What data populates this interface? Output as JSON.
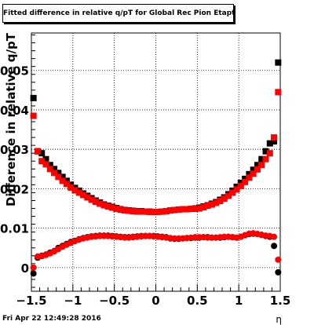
{
  "chart_data": {
    "type": "scatter",
    "title": "Fitted difference in relative q/pT for Global Rec Pion Etapt",
    "xlabel": "η",
    "ylabel": "Difference in relative q/pT",
    "xlim": [
      -1.5,
      1.5
    ],
    "ylim": [
      -0.006,
      0.0595
    ],
    "x_ticks": [
      -1.5,
      -1,
      -0.5,
      0,
      0.5,
      1,
      1.5
    ],
    "x_tick_labels": [
      "−1.5",
      "−1",
      "−0.5",
      "0",
      "0.5",
      "1",
      "1.5"
    ],
    "y_ticks": [
      0,
      0.01,
      0.02,
      0.03,
      0.04,
      0.05
    ],
    "y_tick_labels": [
      "0",
      "0.01",
      "0.02",
      "0.03",
      "0.04",
      "0.05"
    ],
    "grid": true,
    "series": [
      {
        "marker": "square",
        "color": "#000000",
        "x": [
          -1.475,
          -1.425,
          -1.375,
          -1.325,
          -1.275,
          -1.225,
          -1.175,
          -1.125,
          -1.075,
          -1.025,
          -0.975,
          -0.925,
          -0.875,
          -0.825,
          -0.775,
          -0.725,
          -0.675,
          -0.625,
          -0.575,
          -0.525,
          -0.475,
          -0.425,
          -0.375,
          -0.325,
          -0.275,
          -0.225,
          -0.175,
          -0.125,
          -0.075,
          -0.025,
          0.025,
          0.075,
          0.125,
          0.175,
          0.225,
          0.275,
          0.325,
          0.375,
          0.425,
          0.475,
          0.525,
          0.575,
          0.625,
          0.675,
          0.725,
          0.775,
          0.825,
          0.875,
          0.925,
          0.975,
          1.025,
          1.075,
          1.125,
          1.175,
          1.225,
          1.275,
          1.325,
          1.375,
          1.425,
          1.475
        ],
        "values": [
          0.043,
          0.0295,
          0.029,
          0.0275,
          0.026,
          0.025,
          0.024,
          0.023,
          0.022,
          0.021,
          0.0202,
          0.0195,
          0.0188,
          0.0182,
          0.0176,
          0.017,
          0.0165,
          0.016,
          0.0157,
          0.0154,
          0.0151,
          0.0148,
          0.0146,
          0.0145,
          0.0144,
          0.0143,
          0.0143,
          0.0142,
          0.0142,
          0.0141,
          0.0141,
          0.0142,
          0.0143,
          0.0145,
          0.0146,
          0.0147,
          0.0148,
          0.0148,
          0.0149,
          0.015,
          0.0152,
          0.0155,
          0.0158,
          0.0162,
          0.0166,
          0.0172,
          0.0178,
          0.0186,
          0.0195,
          0.0205,
          0.0215,
          0.0225,
          0.0237,
          0.0248,
          0.026,
          0.0275,
          0.0295,
          0.0315,
          0.032,
          0.052
        ]
      },
      {
        "marker": "square",
        "color": "#ff0000",
        "x": [
          -1.475,
          -1.425,
          -1.375,
          -1.325,
          -1.275,
          -1.225,
          -1.175,
          -1.125,
          -1.075,
          -1.025,
          -0.975,
          -0.925,
          -0.875,
          -0.825,
          -0.775,
          -0.725,
          -0.675,
          -0.625,
          -0.575,
          -0.525,
          -0.475,
          -0.425,
          -0.375,
          -0.325,
          -0.275,
          -0.225,
          -0.175,
          -0.125,
          -0.075,
          -0.025,
          0.025,
          0.075,
          0.125,
          0.175,
          0.225,
          0.275,
          0.325,
          0.375,
          0.425,
          0.475,
          0.525,
          0.575,
          0.625,
          0.675,
          0.725,
          0.775,
          0.825,
          0.875,
          0.925,
          0.975,
          1.025,
          1.075,
          1.125,
          1.175,
          1.225,
          1.275,
          1.325,
          1.375,
          1.425,
          1.475
        ],
        "values": [
          0.0385,
          0.0295,
          0.027,
          0.0262,
          0.025,
          0.024,
          0.023,
          0.022,
          0.0212,
          0.0203,
          0.0196,
          0.019,
          0.0184,
          0.0178,
          0.0172,
          0.0167,
          0.0162,
          0.0158,
          0.0155,
          0.0152,
          0.0149,
          0.0147,
          0.0145,
          0.0144,
          0.0143,
          0.0142,
          0.0142,
          0.0142,
          0.0141,
          0.0141,
          0.0141,
          0.0142,
          0.0143,
          0.0145,
          0.0146,
          0.0147,
          0.0148,
          0.0148,
          0.0149,
          0.0149,
          0.015,
          0.0153,
          0.0157,
          0.016,
          0.0164,
          0.0169,
          0.0175,
          0.0182,
          0.019,
          0.0198,
          0.0207,
          0.0217,
          0.0228,
          0.0238,
          0.0249,
          0.026,
          0.0275,
          0.029,
          0.033,
          0.0445
        ]
      },
      {
        "marker": "circle",
        "color": "#000000",
        "x": [
          -1.475,
          -1.425,
          -1.375,
          -1.325,
          -1.275,
          -1.225,
          -1.175,
          -1.125,
          -1.075,
          -1.025,
          -0.975,
          -0.925,
          -0.875,
          -0.825,
          -0.775,
          -0.725,
          -0.675,
          -0.625,
          -0.575,
          -0.525,
          -0.475,
          -0.425,
          -0.375,
          -0.325,
          -0.275,
          -0.225,
          -0.175,
          -0.125,
          -0.075,
          -0.025,
          0.025,
          0.075,
          0.125,
          0.175,
          0.225,
          0.275,
          0.325,
          0.375,
          0.425,
          0.475,
          0.525,
          0.575,
          0.625,
          0.675,
          0.725,
          0.775,
          0.825,
          0.875,
          0.925,
          0.975,
          1.025,
          1.075,
          1.125,
          1.175,
          1.225,
          1.275,
          1.325,
          1.375,
          1.425,
          1.475
        ],
        "values": [
          -0.0015,
          0.0025,
          0.003,
          0.0033,
          0.0038,
          0.0042,
          0.005,
          0.0055,
          0.006,
          0.0065,
          0.0068,
          0.0072,
          0.0075,
          0.0077,
          0.0079,
          0.008,
          0.0081,
          0.0081,
          0.0081,
          0.008,
          0.0079,
          0.0078,
          0.0077,
          0.0077,
          0.0078,
          0.0079,
          0.008,
          0.008,
          0.008,
          0.008,
          0.0079,
          0.0078,
          0.0077,
          0.0074,
          0.0073,
          0.0073,
          0.0074,
          0.0075,
          0.0075,
          0.0076,
          0.0076,
          0.0077,
          0.0077,
          0.0076,
          0.0076,
          0.0076,
          0.0077,
          0.0078,
          0.0077,
          0.0076,
          0.0078,
          0.0082,
          0.0085,
          0.0086,
          0.0085,
          0.0083,
          0.008,
          0.0078,
          0.0055,
          -0.0012
        ]
      },
      {
        "marker": "circle",
        "color": "#ff0000",
        "x": [
          -1.475,
          -1.425,
          -1.375,
          -1.325,
          -1.275,
          -1.225,
          -1.175,
          -1.125,
          -1.075,
          -1.025,
          -0.975,
          -0.925,
          -0.875,
          -0.825,
          -0.775,
          -0.725,
          -0.675,
          -0.625,
          -0.575,
          -0.525,
          -0.475,
          -0.425,
          -0.375,
          -0.325,
          -0.275,
          -0.225,
          -0.175,
          -0.125,
          -0.075,
          -0.025,
          0.025,
          0.075,
          0.125,
          0.175,
          0.225,
          0.275,
          0.325,
          0.375,
          0.425,
          0.475,
          0.525,
          0.575,
          0.625,
          0.675,
          0.725,
          0.775,
          0.825,
          0.875,
          0.925,
          0.975,
          1.025,
          1.075,
          1.125,
          1.175,
          1.225,
          1.275,
          1.325,
          1.375,
          1.425,
          1.475
        ],
        "values": [
          0.0,
          0.0028,
          0.0029,
          0.0032,
          0.0036,
          0.0041,
          0.0047,
          0.0053,
          0.0058,
          0.0063,
          0.0067,
          0.0071,
          0.0074,
          0.0076,
          0.0078,
          0.0079,
          0.008,
          0.008,
          0.008,
          0.0079,
          0.0078,
          0.0077,
          0.0076,
          0.0076,
          0.0077,
          0.0078,
          0.0079,
          0.008,
          0.008,
          0.0079,
          0.0078,
          0.0077,
          0.0076,
          0.0075,
          0.0074,
          0.0074,
          0.0074,
          0.0075,
          0.0076,
          0.0077,
          0.0077,
          0.0077,
          0.0076,
          0.0076,
          0.0076,
          0.0077,
          0.0078,
          0.0078,
          0.0077,
          0.0076,
          0.0078,
          0.0082,
          0.0086,
          0.0087,
          0.0085,
          0.0083,
          0.0081,
          0.008,
          0.0078,
          0.002
        ]
      }
    ]
  },
  "footer": {
    "timestamp": "Fri Apr 22 12:49:28 2016"
  }
}
